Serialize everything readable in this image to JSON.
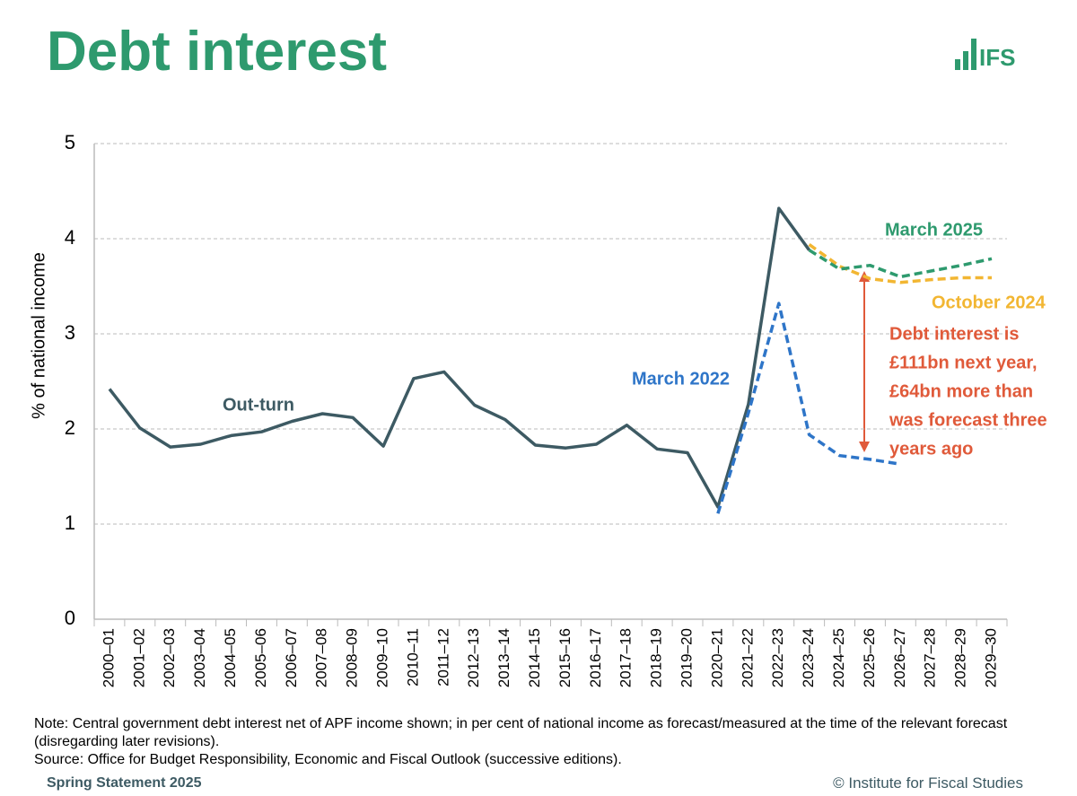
{
  "header": {
    "title": "Debt interest",
    "logo": "IFS"
  },
  "chart_data": {
    "type": "line",
    "categories": [
      "2000–01",
      "2001–02",
      "2002–03",
      "2003–04",
      "2004–05",
      "2005–06",
      "2006–07",
      "2007–08",
      "2008–09",
      "2009–10",
      "2010–11",
      "2011–12",
      "2012–13",
      "2013–14",
      "2014–15",
      "2015–16",
      "2016–17",
      "2017–18",
      "2018–19",
      "2019–20",
      "2020–21",
      "2021–22",
      "2022–23",
      "2023–24",
      "2024–25",
      "2025–26",
      "2026–27",
      "2027–28",
      "2028–29",
      "2029–30"
    ],
    "series": [
      {
        "name": "Out-turn",
        "color": "#3d5a63",
        "dashed": false,
        "values": [
          2.42,
          2.01,
          1.81,
          1.84,
          1.93,
          1.97,
          2.08,
          2.16,
          2.12,
          1.82,
          2.53,
          2.6,
          2.25,
          2.1,
          1.83,
          1.8,
          1.84,
          2.04,
          1.79,
          1.75,
          1.18,
          2.26,
          4.32,
          3.88,
          null,
          null,
          null,
          null,
          null,
          null
        ]
      },
      {
        "name": "March 2022",
        "color": "#2e75c8",
        "dashed": true,
        "values": [
          null,
          null,
          null,
          null,
          null,
          null,
          null,
          null,
          null,
          null,
          null,
          null,
          null,
          null,
          null,
          null,
          null,
          null,
          null,
          null,
          1.11,
          2.17,
          3.32,
          1.94,
          1.72,
          1.68,
          1.63,
          null,
          null,
          null
        ]
      },
      {
        "name": "October 2024",
        "color": "#f2b632",
        "dashed": true,
        "values": [
          null,
          null,
          null,
          null,
          null,
          null,
          null,
          null,
          null,
          null,
          null,
          null,
          null,
          null,
          null,
          null,
          null,
          null,
          null,
          null,
          null,
          null,
          null,
          3.94,
          3.71,
          3.58,
          3.54,
          3.57,
          3.59,
          3.59
        ]
      },
      {
        "name": "March 2025",
        "color": "#2e9a6e",
        "dashed": true,
        "values": [
          null,
          null,
          null,
          null,
          null,
          null,
          null,
          null,
          null,
          null,
          null,
          null,
          null,
          null,
          null,
          null,
          null,
          null,
          null,
          null,
          null,
          null,
          null,
          3.88,
          3.68,
          3.72,
          3.6,
          3.66,
          3.72,
          3.79
        ]
      }
    ],
    "ylabel": "% of national income",
    "ylim": [
      0,
      5
    ],
    "yticks": [
      0,
      1,
      2,
      3,
      4,
      5
    ],
    "grid": true,
    "annotation": [
      "Debt interest is",
      "£111bn next year,",
      "£64bn more than",
      "was forecast three",
      "years ago"
    ]
  },
  "footer": {
    "note": "Note: Central government debt interest net of APF income shown; in per cent of national income as forecast/measured at the time of the relevant forecast (disregarding later revisions).",
    "source": "Source: Office for Budget Responsibility, Economic and Fiscal Outlook (successive editions).",
    "left": "Spring Statement 2025",
    "right": "© Institute for Fiscal Studies"
  }
}
